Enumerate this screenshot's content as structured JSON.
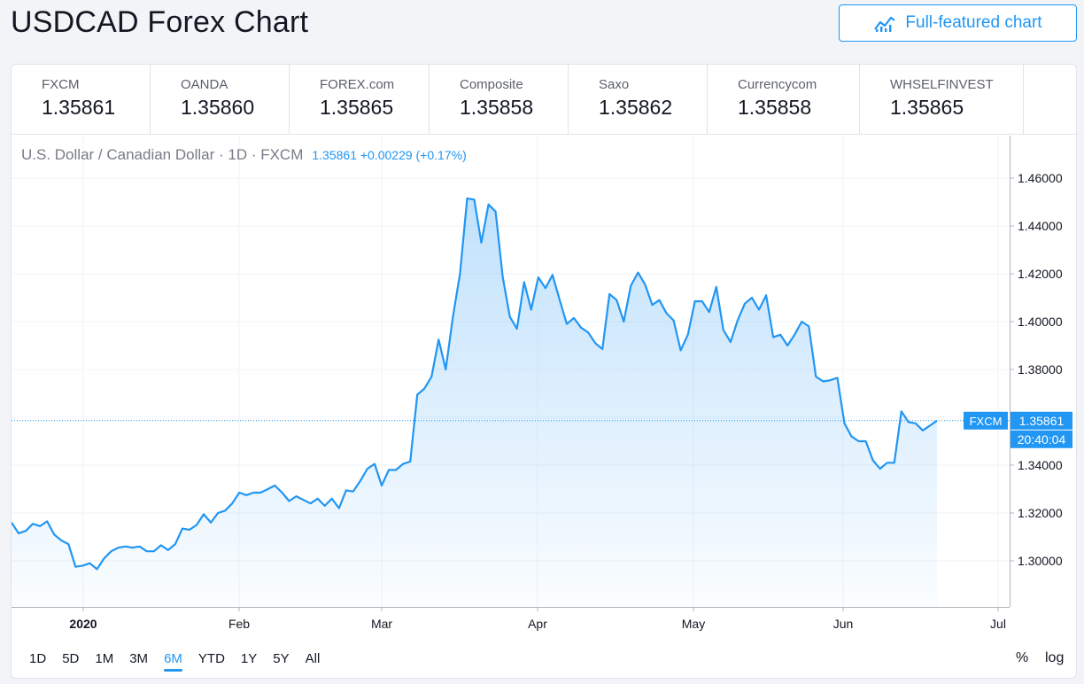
{
  "header": {
    "title": "USDCAD Forex Chart",
    "full_chart_label": "Full-featured chart"
  },
  "tabs": [
    {
      "source": "FXCM",
      "value": "1.35861",
      "active": true
    },
    {
      "source": "OANDA",
      "value": "1.35860",
      "active": false
    },
    {
      "source": "FOREX.com",
      "value": "1.35865",
      "active": false
    },
    {
      "source": "Composite",
      "value": "1.35858",
      "active": false
    },
    {
      "source": "Saxo",
      "value": "1.35862",
      "active": false
    },
    {
      "source": "Currencycom",
      "value": "1.35858",
      "active": false
    },
    {
      "source": "WHSELFINVEST",
      "value": "1.35865",
      "active": false
    }
  ],
  "legend": {
    "symbol": "U.S. Dollar / Canadian Dollar · 1D · FXCM",
    "quote": "1.35861 +0.00229 (+0.17%)"
  },
  "ranges": {
    "items": [
      "1D",
      "5D",
      "1M",
      "3M",
      "6M",
      "YTD",
      "1Y",
      "5Y",
      "All"
    ],
    "active": "6M"
  },
  "options": {
    "percent": "%",
    "log": "log"
  },
  "colors": {
    "accent": "#2196f3",
    "line": "#2196f3",
    "grid": "#f0f3fa"
  },
  "chart_data": {
    "type": "area",
    "x_ticks": [
      "2020",
      "Feb",
      "Mar",
      "Apr",
      "May",
      "Jun",
      "Jul"
    ],
    "y_ticks": [
      "1.46000",
      "1.44000",
      "1.42000",
      "1.40000",
      "1.38000",
      "1.36000",
      "1.34000",
      "1.32000",
      "1.30000"
    ],
    "ylim": [
      1.288,
      1.47
    ],
    "grid": true,
    "last_price_label": {
      "source": "FXCM",
      "value": "1.35861",
      "countdown": "20:40:04"
    },
    "series": [
      {
        "values": [
          1.316,
          1.3115,
          1.3125,
          1.3155,
          1.3145,
          1.3165,
          1.311,
          1.3085,
          1.307,
          1.2975,
          1.298,
          1.299,
          1.2965,
          1.301,
          1.304,
          1.3055,
          1.306,
          1.3055,
          1.306,
          1.304,
          1.304,
          1.3065,
          1.3045,
          1.307,
          1.3135,
          1.313,
          1.315,
          1.3195,
          1.316,
          1.32,
          1.321,
          1.324,
          1.3285,
          1.3275,
          1.3285,
          1.3285,
          1.33,
          1.3315,
          1.3285,
          1.325,
          1.327,
          1.3255,
          1.324,
          1.326,
          1.323,
          1.326,
          1.322,
          1.3295,
          1.329,
          1.3335,
          1.3385,
          1.3405,
          1.3315,
          1.338,
          1.338,
          1.3405,
          1.3415,
          1.3695,
          1.372,
          1.377,
          1.3925,
          1.38,
          1.402,
          1.42,
          1.4515,
          1.451,
          1.433,
          1.449,
          1.446,
          1.4185,
          1.402,
          1.397,
          1.4165,
          1.405,
          1.4185,
          1.414,
          1.4195,
          1.409,
          1.399,
          1.4015,
          1.3975,
          1.3955,
          1.391,
          1.3885,
          1.4115,
          1.409,
          1.4,
          1.415,
          1.4205,
          1.4155,
          1.407,
          1.409,
          1.4035,
          1.4005,
          1.388,
          1.3945,
          1.4085,
          1.4085,
          1.404,
          1.4145,
          1.3965,
          1.3915,
          1.4005,
          1.4075,
          1.41,
          1.405,
          1.411,
          1.3935,
          1.3945,
          1.39,
          1.3945,
          1.4,
          1.398,
          1.377,
          1.375,
          1.3755,
          1.3765,
          1.3575,
          1.352,
          1.35,
          1.35,
          1.342,
          1.3385,
          1.341,
          1.341,
          1.3625,
          1.358,
          1.3575,
          1.3545,
          1.3565,
          1.3586
        ]
      }
    ]
  }
}
